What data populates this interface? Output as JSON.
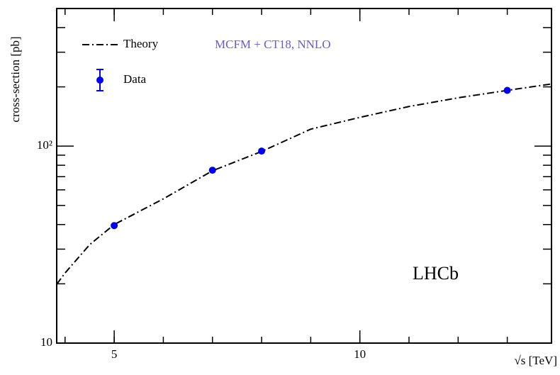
{
  "chart_data": {
    "type": "line",
    "xlabel": "√s [TeV]",
    "ylabel": "cross-section [pb]",
    "annotations": [
      "MCFM + CT18, NNLO",
      "LHCb"
    ],
    "xlim": [
      3.83,
      13.9
    ],
    "xticks": [
      5,
      10
    ],
    "ylim": [
      10,
      500
    ],
    "yticks": [
      10,
      {
        "value": 100,
        "label": "10²"
      }
    ],
    "ylog": true,
    "legend": "upper left",
    "series": [
      {
        "name": "Theory",
        "color": "#000000",
        "style": "dashdot",
        "x": [
          3.83,
          4,
          4.5,
          5,
          6,
          7,
          8,
          9,
          10,
          11,
          12,
          13,
          13.9
        ],
        "values": [
          19.9,
          22.7,
          31.6,
          40,
          54,
          75,
          94,
          122,
          140,
          159,
          176,
          192,
          207
        ]
      },
      {
        "name": "Data",
        "color": "#0000ee",
        "style": "points",
        "x": [
          5,
          7,
          8,
          13
        ],
        "values": [
          39.5,
          75.5,
          94.4,
          192
        ]
      }
    ]
  }
}
